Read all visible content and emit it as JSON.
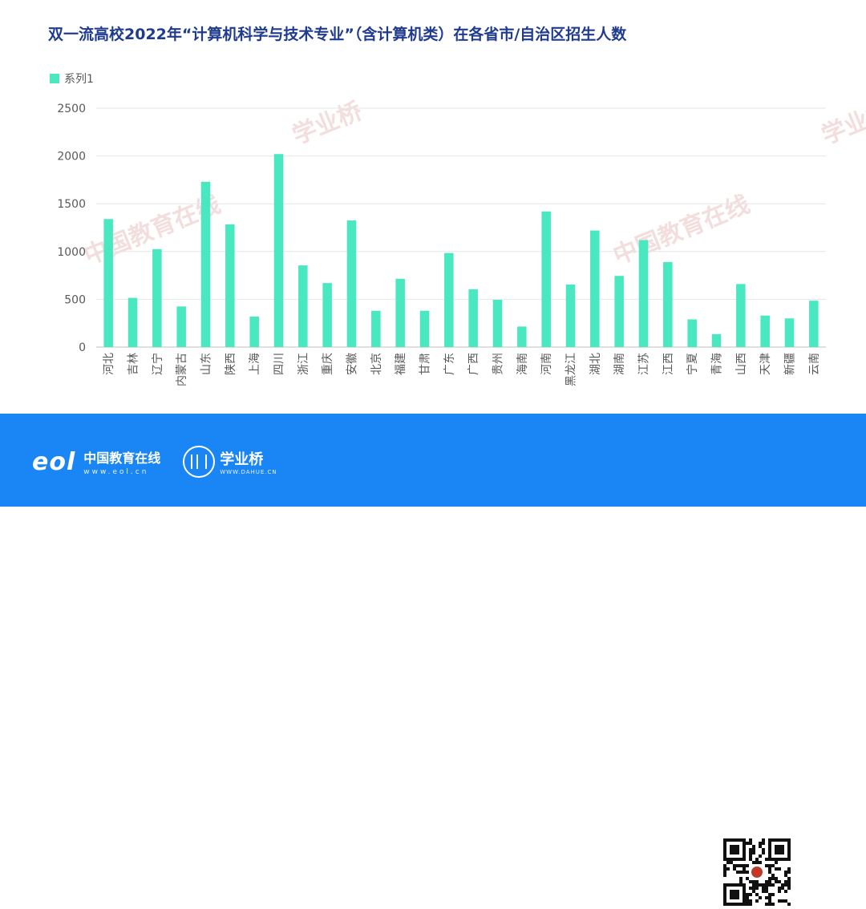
{
  "chart_data": {
    "type": "bar",
    "title": "双一流高校2022年“计算机科学与技术专业”（含计算机类）在各省市/自治区招生人数",
    "legend_position": "top-left",
    "grid": true,
    "ylim": [
      0,
      2500
    ],
    "yticks": [
      "2500",
      "2000",
      "1500",
      "1000",
      "500",
      "0"
    ],
    "categories": [
      "河北",
      "吉林",
      "辽宁",
      "内蒙古",
      "山东",
      "陕西",
      "上海",
      "四川",
      "浙江",
      "重庆",
      "安徽",
      "北京",
      "福建",
      "甘肃",
      "广东",
      "广西",
      "贵州",
      "海南",
      "河南",
      "黑龙江",
      "湖北",
      "湖南",
      "江苏",
      "江西",
      "宁夏",
      "青海",
      "山西",
      "天津",
      "新疆",
      "云南"
    ],
    "series": [
      {
        "name": "系列1",
        "color": "#49e8c0",
        "values": [
          1340,
          515,
          1025,
          425,
          1730,
          1285,
          320,
          2020,
          855,
          670,
          1325,
          380,
          715,
          380,
          985,
          605,
          495,
          215,
          1420,
          655,
          1220,
          745,
          1120,
          890,
          290,
          135,
          660,
          330,
          300,
          485
        ]
      }
    ]
  },
  "watermarks": {
    "xueyeqiao": "学业桥",
    "eol_cn": "中国教育在线"
  },
  "footer": {
    "eol_mark": "eol",
    "eol_name": "中国教育在线",
    "eol_url": "www.eol.cn",
    "xyq_name": "学业桥",
    "xyq_url": "WWW.DAHUE.CN",
    "qr_icon": "qr-code-icon",
    "bg_color": "#1a86f5"
  }
}
